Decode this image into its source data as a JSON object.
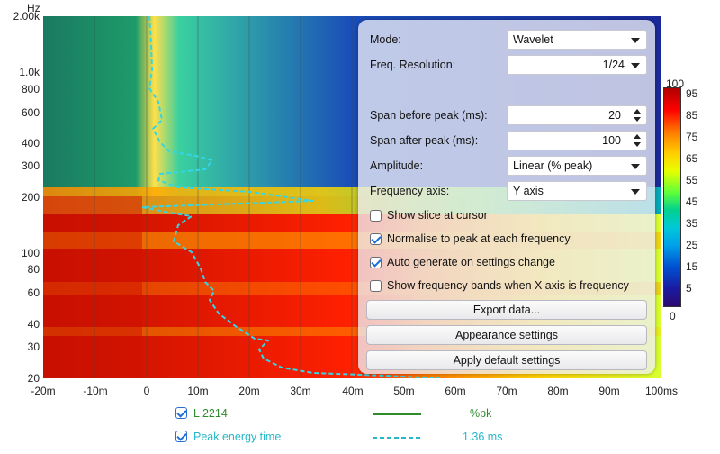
{
  "axes": {
    "y_unit": "Hz",
    "y_ticks": [
      "2.00k",
      "1.0k",
      "800",
      "600",
      "400",
      "300",
      "200",
      "100",
      "80",
      "60",
      "40",
      "30",
      "20"
    ],
    "x_ticks": [
      "-20m",
      "-10m",
      "0",
      "10m",
      "20m",
      "30m",
      "40m",
      "50m",
      "60m",
      "70m",
      "80m",
      "90m",
      "100ms"
    ]
  },
  "colorbar": {
    "top": "100",
    "bottom": "0",
    "labels": [
      "95",
      "85",
      "75",
      "65",
      "55",
      "45",
      "35",
      "25",
      "15",
      "5"
    ]
  },
  "panel": {
    "mode_label": "Mode:",
    "mode_value": "Wavelet",
    "freq_res_label": "Freq. Resolution:",
    "freq_res_value": "1/24",
    "span_before_label": "Span before peak (ms):",
    "span_before_value": "20",
    "span_after_label": "Span after peak (ms):",
    "span_after_value": "100",
    "amplitude_label": "Amplitude:",
    "amplitude_value": "Linear (% peak)",
    "freq_axis_label": "Frequency axis:",
    "freq_axis_value": "Y axis",
    "checks": {
      "slice": "Show slice at cursor",
      "normalise": "Normalise to peak at each frequency",
      "autogen": "Auto generate on settings change",
      "bands": "Show frequency bands when X axis is frequency"
    },
    "buttons": {
      "export": "Export data...",
      "appearance": "Appearance settings",
      "defaults": "Apply default settings"
    }
  },
  "legend": {
    "series1_name": "L 2214",
    "series1_value": "%pk",
    "series1_color": "#2e8b2e",
    "series2_name": "Peak energy time",
    "series2_value": "1.36 ms",
    "series2_color": "#26b7c9"
  }
}
